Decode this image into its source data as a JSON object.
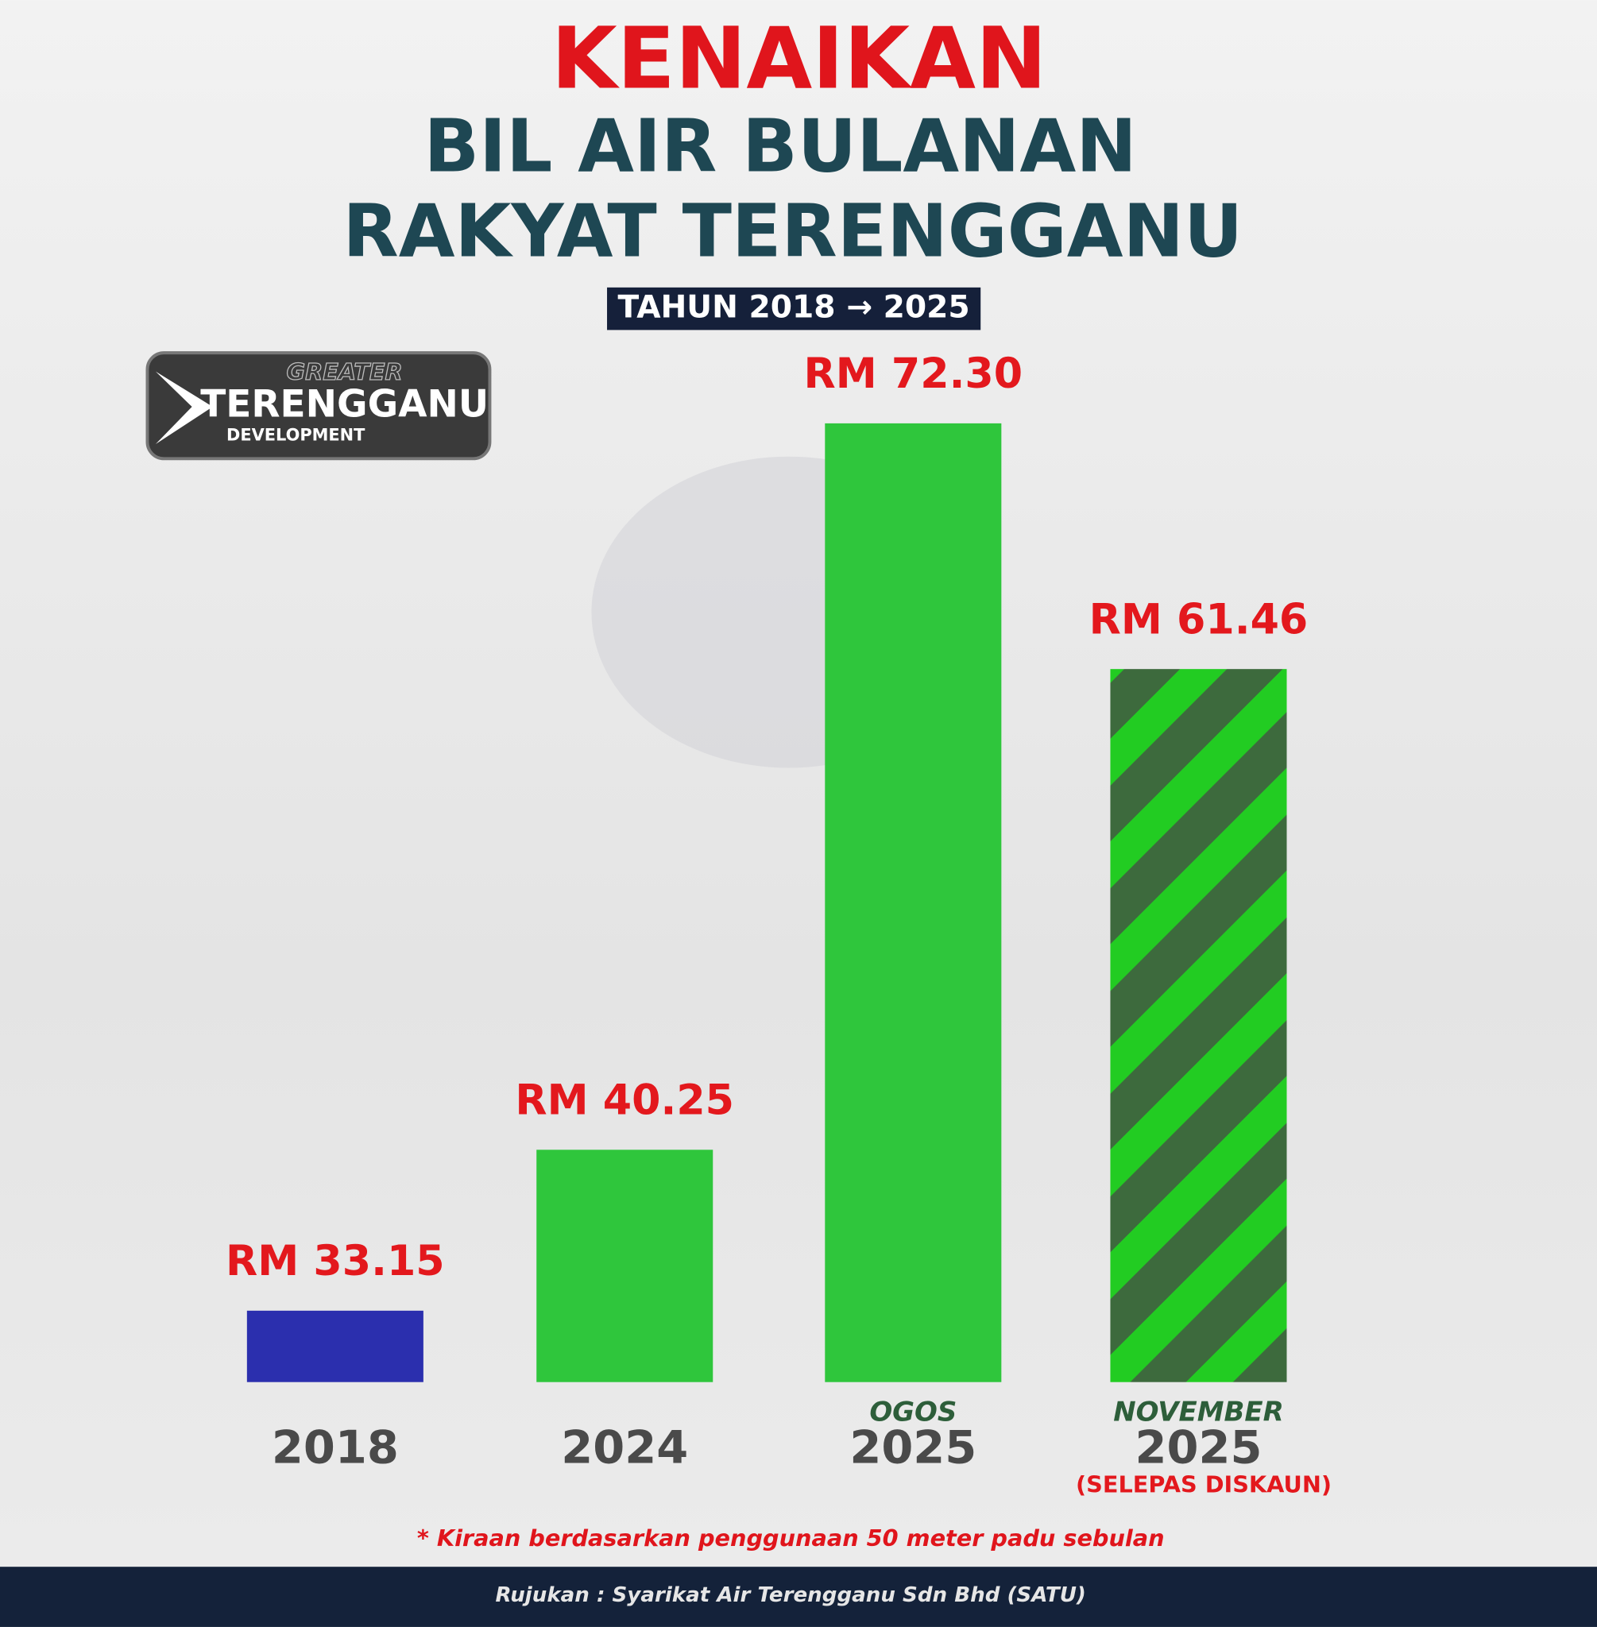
{
  "chart_data": {
    "type": "bar",
    "title": "KENAIKAN",
    "subtitle_lines": [
      "BIL AIR BULANAN",
      "RAKYAT TERENGGANU"
    ],
    "badge": "TAHUN 2018 → 2025",
    "logo": {
      "top": "GREATER",
      "main": "TERENGGANU",
      "bottom": "DEVELOPMENT"
    },
    "categories": [
      "2018",
      "2024",
      "2025",
      "2025"
    ],
    "category_tops": [
      null,
      null,
      "OGOS",
      "NOVEMBER"
    ],
    "category_bottoms": [
      null,
      null,
      null,
      "(SELEPAS DISKAUN)"
    ],
    "values": [
      33.15,
      40.25,
      72.3,
      61.46
    ],
    "value_labels": [
      "RM 33.15",
      "RM 40.25",
      "RM 72.30",
      "RM 61.46"
    ],
    "colors": [
      "#2b2fae",
      "#2fc63c",
      "#2fc63c",
      "#3d6a3d"
    ],
    "patterns": [
      null,
      null,
      null,
      "striped"
    ],
    "stripe_color": "#22cc22",
    "ylim": [
      30,
      75
    ],
    "footnote": "* Kiraan berdasarkan penggunaan 50 meter padu sebulan",
    "source": "Rujukan : Syarikat Air Terengganu Sdn Bhd (SATU)"
  }
}
